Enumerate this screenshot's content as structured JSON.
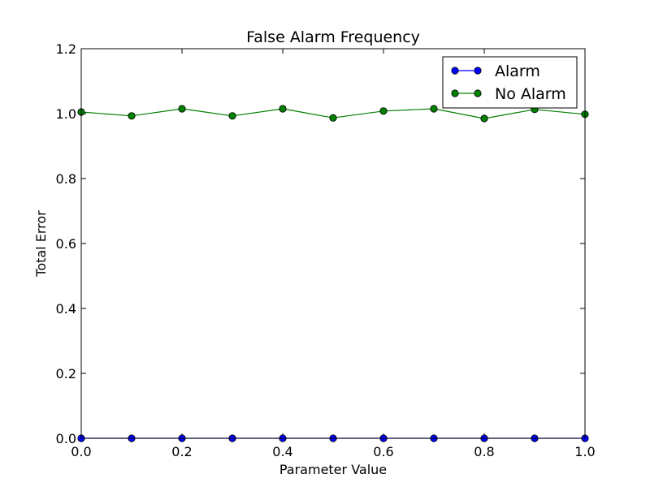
{
  "chart_data": {
    "type": "line",
    "title": "False Alarm Frequency",
    "xlabel": "Parameter Value",
    "ylabel": "Total Error",
    "xlim": [
      0.0,
      1.0
    ],
    "ylim": [
      0.0,
      1.2
    ],
    "x_ticks": [
      "0.0",
      "0.2",
      "0.4",
      "0.6",
      "0.8",
      "1.0"
    ],
    "y_ticks": [
      "0.0",
      "0.2",
      "0.4",
      "0.6",
      "0.8",
      "1.0",
      "1.2"
    ],
    "grid": false,
    "legend_position": "top-right",
    "x": [
      0.0,
      0.1,
      0.2,
      0.3,
      0.4,
      0.5,
      0.6,
      0.7,
      0.8,
      0.9,
      1.0
    ],
    "series": [
      {
        "name": "Alarm",
        "color": "#0000ff",
        "values": [
          0.0,
          0.0,
          0.0,
          0.0,
          0.0,
          0.0,
          0.0,
          0.0,
          0.0,
          0.0,
          0.0
        ]
      },
      {
        "name": "No Alarm",
        "color": "#008000",
        "values": [
          1.005,
          0.993,
          1.015,
          0.993,
          1.015,
          0.987,
          1.008,
          1.015,
          0.985,
          1.013,
          0.998
        ]
      }
    ]
  }
}
